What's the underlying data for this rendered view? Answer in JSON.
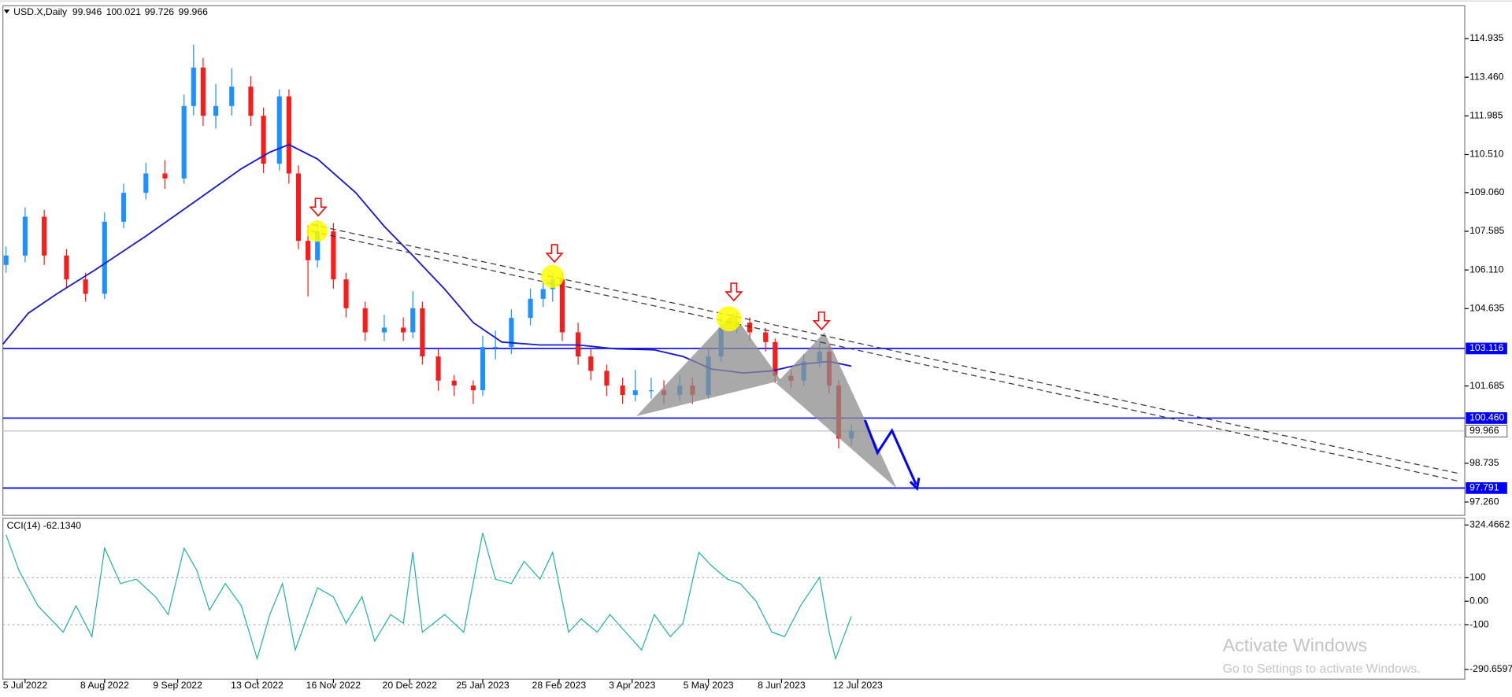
{
  "chart_data": [
    {
      "type": "candlestick",
      "title": "USD.X,Daily",
      "last_bar": {
        "open": 99.946,
        "high": 100.021,
        "low": 99.726,
        "close": 99.966
      },
      "up_color": "#1e90ff",
      "down_color": "#ff1a1a",
      "x": [
        1,
        7,
        13,
        20,
        26,
        32,
        38,
        45,
        51,
        57,
        60,
        63,
        67,
        72,
        78,
        82,
        87,
        90,
        93,
        96,
        99,
        104,
        108,
        114,
        120,
        126,
        129,
        132,
        137,
        142,
        148,
        151,
        155,
        160,
        166,
        170,
        173,
        176,
        181,
        185,
        190,
        195,
        199,
        204,
        208,
        213,
        217,
        222,
        226,
        231,
        235,
        240,
        243,
        248,
        252,
        257,
        260,
        263,
        267
      ],
      "candles": [
        [
          106.3,
          107.0,
          106.0,
          106.66
        ],
        [
          106.66,
          108.5,
          106.4,
          108.14
        ],
        [
          108.14,
          108.4,
          106.3,
          106.66
        ],
        [
          106.66,
          106.9,
          105.4,
          105.75
        ],
        [
          105.75,
          106.0,
          104.9,
          105.2
        ],
        [
          105.2,
          108.3,
          105.0,
          107.95
        ],
        [
          107.95,
          109.4,
          107.7,
          109.05
        ],
        [
          109.05,
          110.2,
          108.8,
          109.79
        ],
        [
          109.79,
          110.3,
          109.2,
          109.6
        ],
        [
          109.6,
          112.8,
          109.4,
          112.36
        ],
        [
          112.36,
          114.7,
          112.0,
          113.83
        ],
        [
          113.83,
          114.2,
          111.6,
          111.99
        ],
        [
          111.99,
          113.2,
          111.5,
          112.36
        ],
        [
          112.36,
          113.8,
          112.0,
          113.1
        ],
        [
          113.1,
          113.5,
          111.6,
          111.99
        ],
        [
          111.99,
          112.3,
          109.8,
          110.16
        ],
        [
          110.16,
          113.0,
          109.9,
          112.73
        ],
        [
          112.73,
          113.0,
          109.4,
          109.79
        ],
        [
          109.79,
          110.1,
          106.9,
          107.22
        ],
        [
          107.22,
          107.8,
          105.1,
          106.48
        ],
        [
          106.48,
          108.0,
          106.2,
          107.58
        ],
        [
          107.58,
          107.9,
          105.4,
          105.75
        ],
        [
          105.75,
          106.0,
          104.3,
          104.65
        ],
        [
          104.65,
          104.9,
          103.4,
          103.73
        ],
        [
          103.73,
          104.4,
          103.4,
          103.91
        ],
        [
          103.91,
          104.3,
          103.4,
          103.73
        ],
        [
          103.73,
          105.3,
          103.5,
          104.65
        ],
        [
          104.65,
          104.9,
          102.5,
          102.81
        ],
        [
          102.81,
          103.1,
          101.5,
          101.89
        ],
        [
          101.89,
          102.1,
          101.3,
          101.7
        ],
        [
          101.7,
          101.9,
          101.0,
          101.52
        ],
        [
          101.52,
          103.6,
          101.3,
          103.17
        ],
        [
          103.17,
          103.8,
          102.7,
          103.17
        ],
        [
          103.17,
          104.6,
          102.9,
          104.28
        ],
        [
          104.28,
          105.4,
          104.0,
          105.01
        ],
        [
          105.01,
          105.7,
          104.7,
          105.38
        ],
        [
          105.38,
          106.0,
          104.9,
          105.75
        ],
        [
          105.75,
          106.0,
          103.4,
          103.73
        ],
        [
          103.73,
          104.1,
          102.5,
          102.81
        ],
        [
          102.81,
          103.1,
          101.9,
          102.26
        ],
        [
          102.26,
          102.5,
          101.3,
          101.7
        ],
        [
          101.7,
          102.0,
          101.0,
          101.34
        ],
        [
          101.34,
          102.3,
          101.1,
          101.52
        ],
        [
          101.52,
          102.0,
          101.2,
          101.52
        ],
        [
          101.52,
          101.9,
          101.0,
          101.34
        ],
        [
          101.34,
          102.1,
          101.1,
          101.7
        ],
        [
          101.7,
          102.0,
          101.0,
          101.34
        ],
        [
          101.34,
          103.1,
          101.2,
          102.81
        ],
        [
          102.81,
          104.3,
          102.6,
          103.91
        ],
        [
          103.91,
          104.5,
          103.7,
          104.1
        ],
        [
          104.1,
          104.3,
          103.4,
          103.73
        ],
        [
          103.73,
          103.9,
          103.0,
          103.36
        ],
        [
          103.36,
          103.5,
          101.8,
          102.07
        ],
        [
          102.07,
          102.3,
          101.6,
          101.89
        ],
        [
          101.89,
          102.9,
          101.7,
          102.62
        ],
        [
          102.62,
          103.4,
          102.4,
          102.99
        ],
        [
          102.99,
          103.2,
          101.4,
          101.7
        ],
        [
          101.7,
          101.9,
          99.3,
          99.68
        ],
        [
          99.68,
          100.2,
          99.4,
          99.97
        ]
      ],
      "ma": {
        "color": "#1818c8",
        "x": [
          0,
          8,
          17,
          29,
          45,
          60,
          75,
          84,
          90,
          99,
          111,
          120,
          129,
          139,
          148,
          157,
          169,
          181,
          193,
          205,
          214,
          223,
          233,
          242,
          251,
          260,
          267
        ],
        "values": [
          103.28,
          104.46,
          105.2,
          106.11,
          107.4,
          108.68,
          109.97,
          110.6,
          110.89,
          110.34,
          109.06,
          107.77,
          106.66,
          105.38,
          104.1,
          103.36,
          103.25,
          103.25,
          103.1,
          103.06,
          102.81,
          102.33,
          102.18,
          102.26,
          102.51,
          102.62,
          102.44
        ]
      },
      "levels": [
        {
          "value": 103.116,
          "color": "#0000ff"
        },
        {
          "value": 100.46,
          "label": "100.460",
          "color": "#0000ff"
        },
        {
          "value": 99.966,
          "color": "#c0c0c0"
        },
        {
          "value": 97.791,
          "color": "#0000ff"
        }
      ],
      "xlim": [
        0,
        460
      ],
      "xticks": [
        {
          "value": 7,
          "label": "5 Jul 2022"
        },
        {
          "value": 32,
          "label": "8 Aug 2022"
        },
        {
          "value": 55,
          "label": "9 Sep 2022"
        },
        {
          "value": 80,
          "label": "13 Oct 2022"
        },
        {
          "value": 104,
          "label": "16 Nov 2022"
        },
        {
          "value": 128,
          "label": "20 Dec 2022"
        },
        {
          "value": 151,
          "label": "25 Jan 2023"
        },
        {
          "value": 175,
          "label": "28 Feb 2023"
        },
        {
          "value": 198,
          "label": "3 Apr 2023"
        },
        {
          "value": 222,
          "label": "5 May 2023"
        },
        {
          "value": 245,
          "label": "8 Jun 2023"
        },
        {
          "value": 269,
          "label": "12 Jul 2023"
        }
      ],
      "ylim": [
        96.75,
        116.185
      ],
      "yticks": [
        114.935,
        {
          "value": 113.46,
          "label": "113.460"
        },
        111.985,
        {
          "value": 110.51,
          "label": "110.510"
        },
        {
          "value": 109.06,
          "label": "109.060"
        },
        107.585,
        {
          "value": 106.11,
          "label": "106.110"
        },
        104.635,
        101.685,
        98.735,
        {
          "value": 97.26,
          "label": "97.260"
        }
      ]
    },
    {
      "type": "line",
      "title": "CCI(14) -62.1340",
      "color": "#20b2aa",
      "x": [
        1,
        5,
        11,
        19,
        23,
        28,
        32,
        37,
        42,
        48,
        52,
        57,
        61,
        65,
        70,
        75,
        80,
        84,
        88,
        92,
        96,
        99,
        104,
        108,
        113,
        117,
        122,
        126,
        129,
        132,
        139,
        145,
        151,
        155,
        160,
        164,
        169,
        173,
        178,
        182,
        187,
        191,
        196,
        201,
        205,
        210,
        214,
        219,
        223,
        228,
        232,
        237,
        242,
        246,
        251,
        257,
        260,
        262,
        267
      ],
      "values": [
        283,
        132,
        -19,
        -132,
        -19,
        -151,
        226,
        75,
        94,
        19,
        -57,
        226,
        132,
        -38,
        75,
        -19,
        -245,
        -57,
        75,
        -208,
        -57,
        57,
        19,
        -94,
        19,
        -170,
        -57,
        -94,
        208,
        -132,
        -57,
        -132,
        291,
        94,
        75,
        170,
        94,
        208,
        -132,
        -75,
        -132,
        -57,
        -132,
        -208,
        -57,
        -151,
        -94,
        208,
        151,
        94,
        75,
        0,
        -132,
        -151,
        -19,
        102,
        -132,
        -245,
        -64
      ],
      "ylim": [
        -331.7,
        353.2
      ],
      "yticks": [
        324.4662,
        100,
        {
          "value": 0,
          "label": "0.00"
        },
        -100,
        -290.6597
      ],
      "grid": true
    }
  ],
  "watermark": {
    "title": "Activate Windows",
    "subtitle": "Go to Settings to activate Windows."
  }
}
